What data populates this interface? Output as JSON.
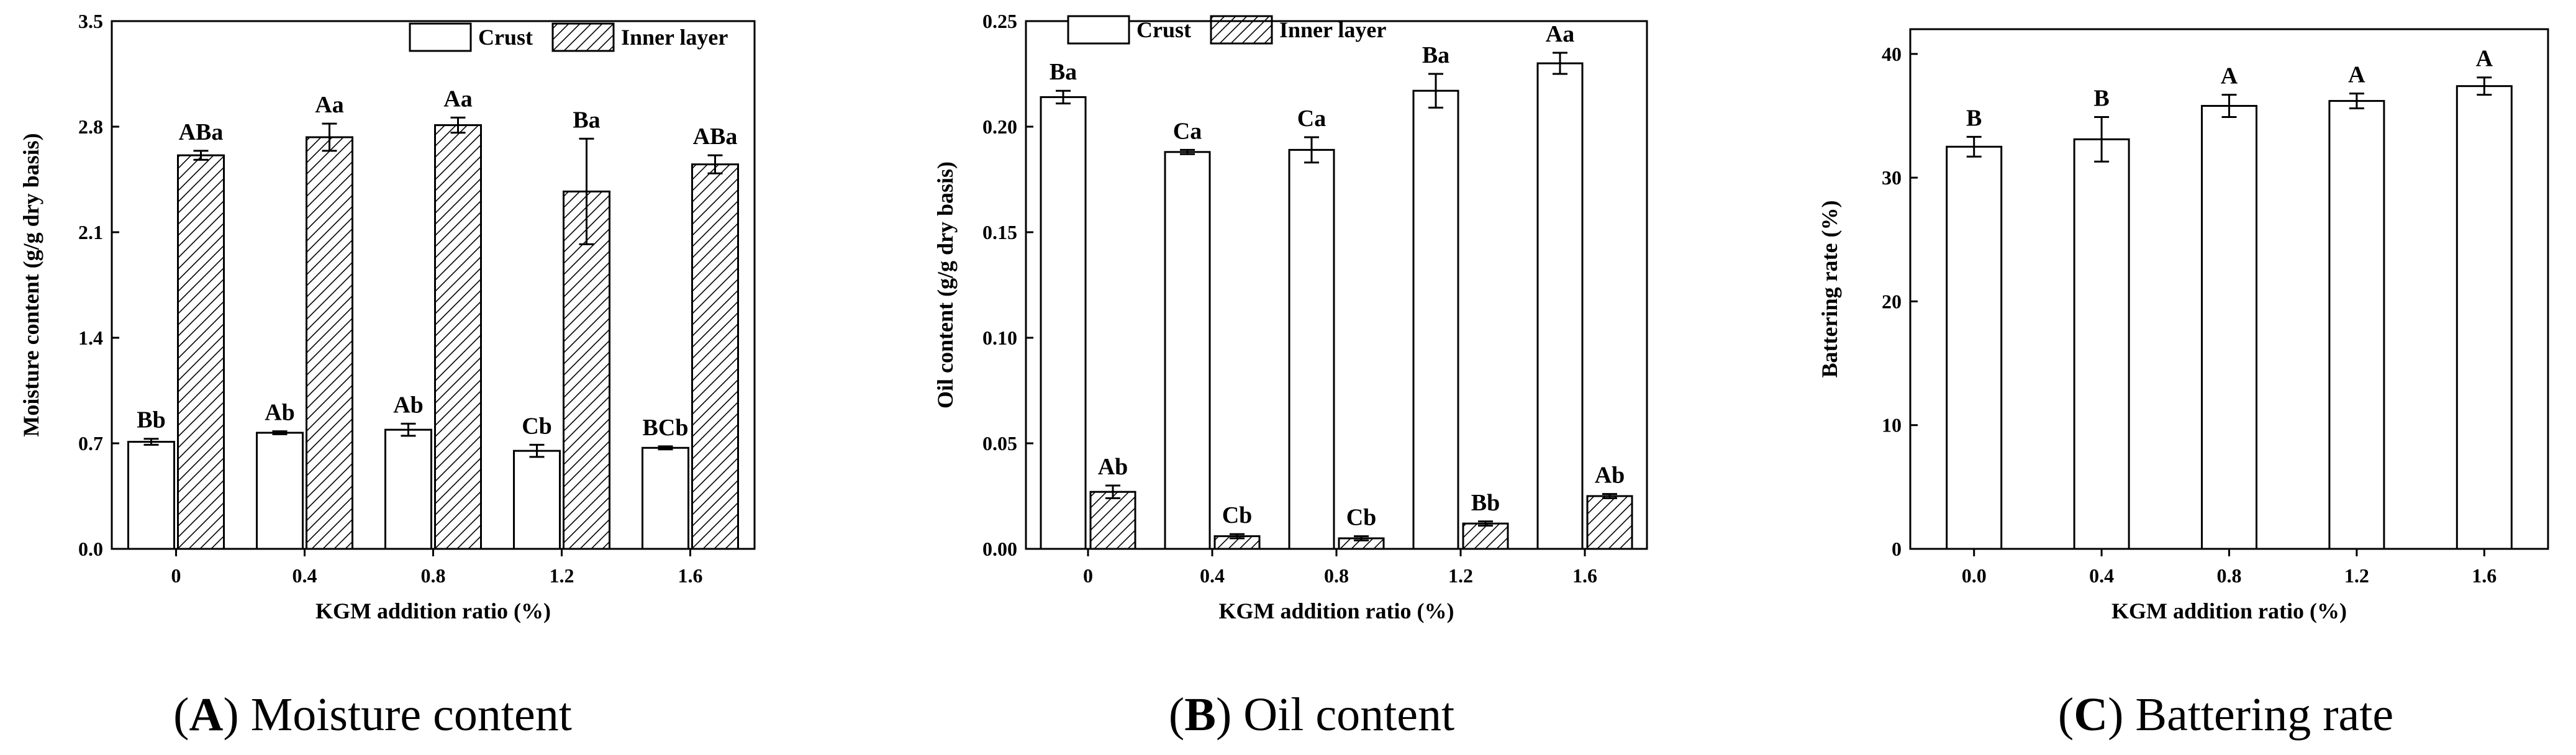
{
  "chart_data": [
    {
      "panel": "A",
      "type": "bar",
      "caption": {
        "letter": "A",
        "text": "Moisture content"
      },
      "xlabel": "KGM addition ratio (%)",
      "ylabel": "Moisture content (g/g dry basis)",
      "categories": [
        "0",
        "0.4",
        "0.8",
        "1.2",
        "1.6"
      ],
      "ylim": [
        0,
        3.5
      ],
      "yticks": [
        "0.0",
        "0.7",
        "1.4",
        "2.1",
        "2.8",
        "3.5"
      ],
      "legend": {
        "position": "top-right"
      },
      "series": [
        {
          "name": "Crust",
          "pattern": "open",
          "values": [
            0.71,
            0.77,
            0.79,
            0.65,
            0.67
          ],
          "errors": [
            0.02,
            0.01,
            0.04,
            0.04,
            0.01
          ],
          "labels": [
            "Bb",
            "Ab",
            "Ab",
            "Cb",
            "BCb"
          ]
        },
        {
          "name": "Inner layer",
          "pattern": "hatched",
          "values": [
            2.61,
            2.73,
            2.81,
            2.37,
            2.55
          ],
          "errors": [
            0.03,
            0.09,
            0.05,
            0.35,
            0.06
          ],
          "labels": [
            "ABa",
            "Aa",
            "Aa",
            "Ba",
            "ABa"
          ]
        }
      ]
    },
    {
      "panel": "B",
      "type": "bar",
      "caption": {
        "letter": "B",
        "text": "Oil content"
      },
      "xlabel": "KGM addition ratio (%)",
      "ylabel": "Oil content (g/g dry basis)",
      "categories": [
        "0",
        "0.4",
        "0.8",
        "1.2",
        "1.6"
      ],
      "ylim": [
        0,
        0.25
      ],
      "yticks": [
        "0.00",
        "0.05",
        "0.10",
        "0.15",
        "0.20",
        "0.25"
      ],
      "legend": {
        "position": "top"
      },
      "series": [
        {
          "name": "Crust",
          "pattern": "open",
          "values": [
            0.214,
            0.188,
            0.189,
            0.217,
            0.23
          ],
          "errors": [
            0.003,
            0.001,
            0.006,
            0.008,
            0.005
          ],
          "labels": [
            "Ba",
            "Ca",
            "Ca",
            "Ba",
            "Aa"
          ]
        },
        {
          "name": "Inner layer",
          "pattern": "hatched",
          "values": [
            0.027,
            0.006,
            0.005,
            0.012,
            0.025
          ],
          "errors": [
            0.003,
            0.001,
            0.001,
            0.001,
            0.001
          ],
          "labels": [
            "Ab",
            "Cb",
            "Cb",
            "Bb",
            "Ab"
          ]
        }
      ]
    },
    {
      "panel": "C",
      "type": "bar",
      "caption": {
        "letter": "C",
        "text": "Battering rate"
      },
      "xlabel": "KGM addition ratio (%)",
      "ylabel": "Battering rate (%)",
      "categories": [
        "0.0",
        "0.4",
        "0.8",
        "1.2",
        "1.6"
      ],
      "ylim": [
        0,
        42
      ],
      "yticks": [
        "0",
        "10",
        "20",
        "30",
        "40"
      ],
      "series": [
        {
          "pattern": "open",
          "values": [
            32.5,
            33.1,
            35.8,
            36.2,
            37.4
          ],
          "errors": [
            0.8,
            1.8,
            0.9,
            0.6,
            0.7
          ],
          "labels": [
            "B",
            "B",
            "A",
            "A",
            "A"
          ]
        }
      ]
    }
  ]
}
